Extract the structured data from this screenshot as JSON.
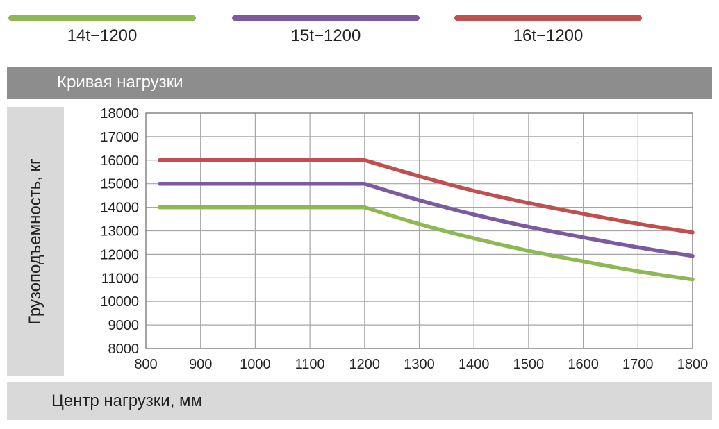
{
  "chart_data": {
    "type": "line",
    "title": "Кривая нагрузки",
    "xlabel": "Центр нагрузки, мм",
    "ylabel": "Грузоподъемность, кг",
    "xlim": [
      800,
      1800
    ],
    "ylim": [
      8000,
      18000
    ],
    "x_ticks": [
      "800",
      "900",
      "1000",
      "1100",
      "1200",
      "1300",
      "1400",
      "1500",
      "1600",
      "1700",
      "1800"
    ],
    "y_ticks": [
      "8000",
      "9000",
      "10000",
      "11000",
      "12000",
      "13000",
      "14000",
      "15000",
      "16000",
      "17000",
      "18000"
    ],
    "grid": true,
    "legend_position": "top",
    "series": [
      {
        "name": "14t−1200",
        "color": "#8db852",
        "points": [
          [
            825,
            14000
          ],
          [
            1200,
            14000
          ],
          [
            1300,
            13290
          ],
          [
            1400,
            12680
          ],
          [
            1500,
            12150
          ],
          [
            1600,
            11700
          ],
          [
            1700,
            11280
          ],
          [
            1800,
            10930
          ]
        ]
      },
      {
        "name": "15t−1200",
        "color": "#7b5aa0",
        "points": [
          [
            825,
            15000
          ],
          [
            1200,
            15000
          ],
          [
            1300,
            14300
          ],
          [
            1400,
            13690
          ],
          [
            1500,
            13170
          ],
          [
            1600,
            12720
          ],
          [
            1700,
            12300
          ],
          [
            1800,
            11930
          ]
        ]
      },
      {
        "name": "16t−1200",
        "color": "#c0504d",
        "points": [
          [
            825,
            16000
          ],
          [
            1200,
            16000
          ],
          [
            1300,
            15320
          ],
          [
            1400,
            14700
          ],
          [
            1500,
            14180
          ],
          [
            1600,
            13720
          ],
          [
            1700,
            13300
          ],
          [
            1800,
            12930
          ]
        ]
      }
    ]
  }
}
